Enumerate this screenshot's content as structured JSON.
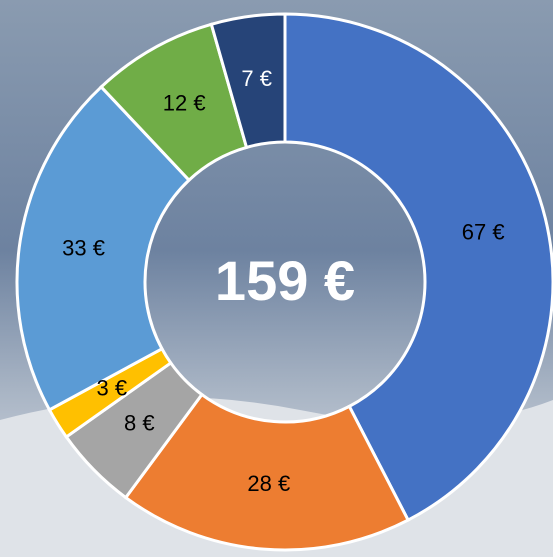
{
  "chart_data": {
    "type": "donut",
    "values": [
      67,
      28,
      8,
      3,
      33,
      12,
      7
    ],
    "value_labels": [
      "67 €",
      "28 €",
      "8 €",
      "3 €",
      "33 €",
      "12 €",
      "7 €"
    ],
    "colors": [
      "#4472c4",
      "#ed7d31",
      "#a5a5a5",
      "#ffc000",
      "#5b9bd5",
      "#70ad47",
      "#264478"
    ],
    "center_label": "159 €"
  }
}
